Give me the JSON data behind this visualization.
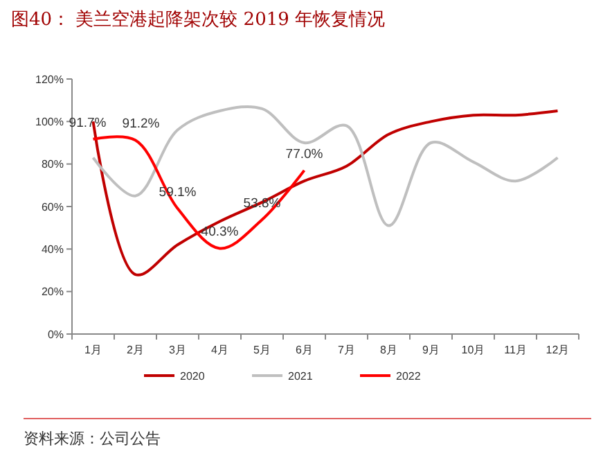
{
  "chart_data": {
    "type": "line",
    "title": "图40：  美兰空港起降架次较 2019 年恢复情况",
    "categories": [
      "1月",
      "2月",
      "3月",
      "4月",
      "5月",
      "6月",
      "7月",
      "8月",
      "9月",
      "10月",
      "11月",
      "12月"
    ],
    "series": [
      {
        "name": "2020",
        "color": "#c00000",
        "values": [
          100,
          28,
          42,
          53,
          62,
          72,
          79,
          94,
          100,
          103,
          103,
          105
        ]
      },
      {
        "name": "2021",
        "color": "#bfbfbf",
        "values": [
          83,
          65,
          96,
          105,
          106,
          90,
          98,
          51,
          90,
          81,
          72,
          83
        ]
      },
      {
        "name": "2022",
        "color": "#ff0000",
        "values": [
          91.7,
          91.2,
          59.1,
          40.3,
          53.8,
          77.0,
          null,
          null,
          null,
          null,
          null,
          null
        ],
        "value_labels": [
          "91.7%",
          "91.2%",
          "59.1%",
          "40.3%",
          "53.8%",
          "77.0%",
          null,
          null,
          null,
          null,
          null,
          null
        ]
      }
    ],
    "ylim": [
      0,
      120
    ],
    "yticks": [
      {
        "value": 0,
        "label": "0%"
      },
      {
        "value": 20,
        "label": "20%"
      },
      {
        "value": 40,
        "label": "40%"
      },
      {
        "value": 60,
        "label": "60%"
      },
      {
        "value": 80,
        "label": "80%"
      },
      {
        "value": 100,
        "label": "100%"
      },
      {
        "value": 120,
        "label": "120%"
      }
    ],
    "grid": false,
    "legend": "bottom",
    "marker": "none",
    "line_style": "solid",
    "annotations": [
      "资料来源：公司公告"
    ]
  }
}
